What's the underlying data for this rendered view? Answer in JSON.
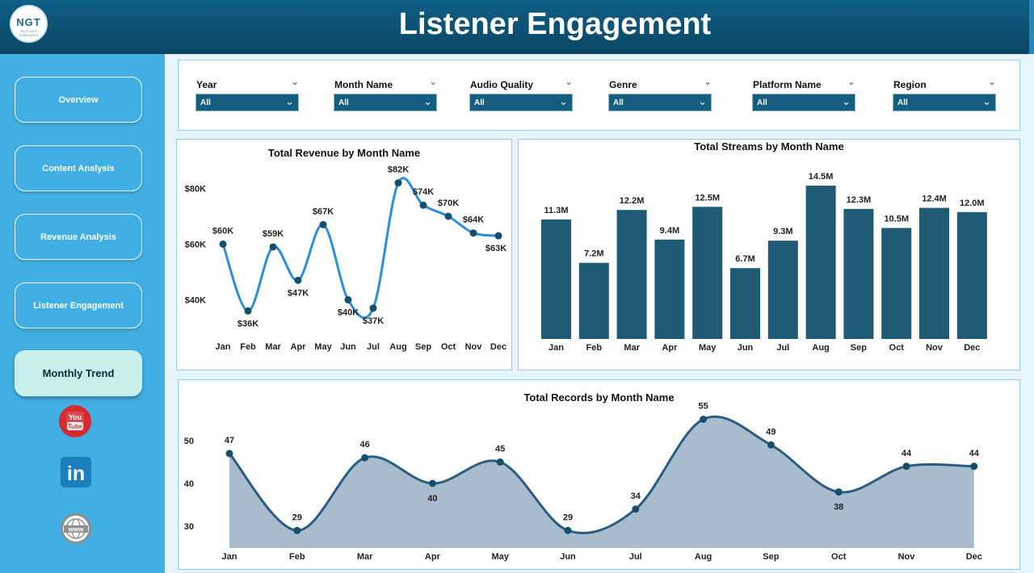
{
  "header": {
    "title": "Listener Engagement",
    "logo_text": "NGT",
    "logo_subtext": "NEXT GEN TEMPLATES"
  },
  "sidebar": {
    "items": [
      {
        "label": "Overview",
        "active": false
      },
      {
        "label": "Content Analysis",
        "active": false
      },
      {
        "label": "Revenue Analysis",
        "active": false
      },
      {
        "label": "Listener Engagement",
        "active": false
      },
      {
        "label": "Monthly Trend",
        "active": true
      }
    ],
    "social": [
      {
        "icon": "youtube-icon",
        "text": "You Tube"
      },
      {
        "icon": "linkedin-icon",
        "text": "in"
      },
      {
        "icon": "website-icon",
        "text": "www"
      }
    ]
  },
  "filters": [
    {
      "label": "Year",
      "value": "All"
    },
    {
      "label": "Month Name",
      "value": "All"
    },
    {
      "label": "Audio Quality",
      "value": "All"
    },
    {
      "label": "Genre",
      "value": "All"
    },
    {
      "label": "Platform Name",
      "value": "All"
    },
    {
      "label": "Region",
      "value": "All"
    }
  ],
  "colors": {
    "header": "#0b4d6e",
    "sidebar": "#41afe4",
    "line": "#2a8fde",
    "bar": "#1f5b74",
    "area_line": "#2b5d84",
    "area_fill": "#a9bcce"
  },
  "chart_data": [
    {
      "type": "line",
      "title": "Total Revenue by Month Name",
      "categories": [
        "Jan",
        "Feb",
        "Mar",
        "Apr",
        "May",
        "Jun",
        "Jul",
        "Aug",
        "Sep",
        "Oct",
        "Nov",
        "Dec"
      ],
      "values": [
        60,
        36,
        59,
        47,
        67,
        40,
        37,
        82,
        74,
        70,
        64,
        63
      ],
      "labels": [
        "$60K",
        "$36K",
        "$59K",
        "$47K",
        "$67K",
        "$40K",
        "$37K",
        "$82K",
        "$74K",
        "$70K",
        "$64K",
        "$63K"
      ],
      "yticks": [
        "$80K",
        "$60K",
        "$40K"
      ],
      "ylim": [
        30,
        85
      ]
    },
    {
      "type": "bar",
      "title": "Total Streams by Month Name",
      "categories": [
        "Jan",
        "Feb",
        "Mar",
        "Apr",
        "May",
        "Jun",
        "Jul",
        "Aug",
        "Sep",
        "Oct",
        "Nov",
        "Dec"
      ],
      "values": [
        11.3,
        7.2,
        12.2,
        9.4,
        12.5,
        6.7,
        9.3,
        14.5,
        12.3,
        10.5,
        12.4,
        12.0
      ],
      "labels": [
        "11.3M",
        "7.2M",
        "12.2M",
        "9.4M",
        "12.5M",
        "6.7M",
        "9.3M",
        "14.5M",
        "12.3M",
        "10.5M",
        "12.4M",
        "12.0M"
      ],
      "ylim": [
        0,
        15
      ]
    },
    {
      "type": "area",
      "title": "Total Records by Month Name",
      "categories": [
        "Jan",
        "Feb",
        "Mar",
        "Apr",
        "May",
        "Jun",
        "Jul",
        "Aug",
        "Sep",
        "Oct",
        "Nov",
        "Dec"
      ],
      "values": [
        47,
        29,
        46,
        40,
        45,
        29,
        34,
        55,
        49,
        38,
        44,
        44
      ],
      "yticks": [
        "50",
        "40",
        "30"
      ],
      "ylim": [
        25,
        57
      ]
    }
  ]
}
